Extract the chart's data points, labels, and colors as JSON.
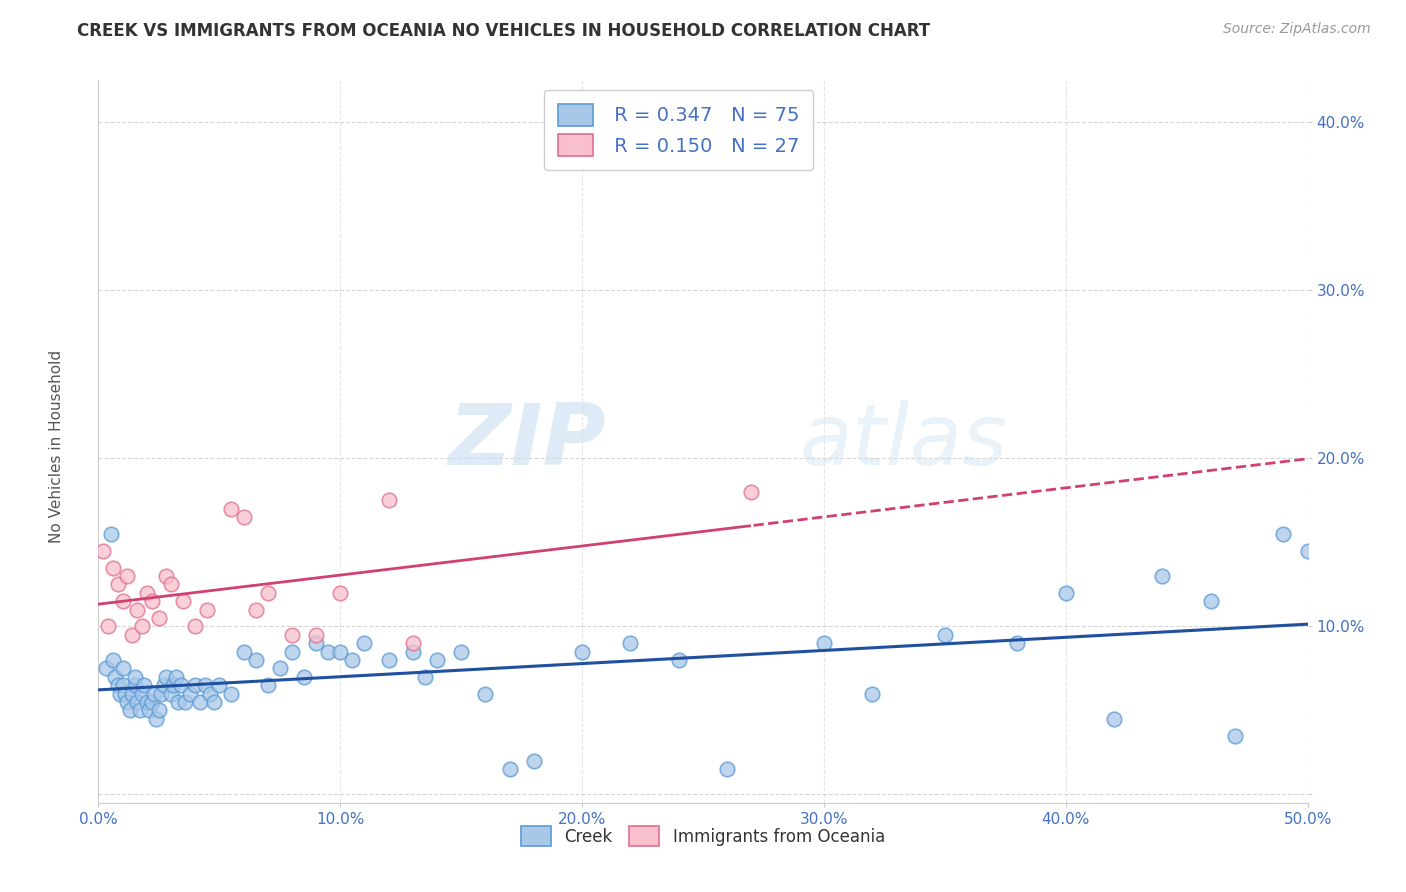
{
  "title": "CREEK VS IMMIGRANTS FROM OCEANIA NO VEHICLES IN HOUSEHOLD CORRELATION CHART",
  "source": "Source: ZipAtlas.com",
  "ylabel": "No Vehicles in Household",
  "xlim": [
    0.0,
    0.5
  ],
  "ylim": [
    -0.005,
    0.425
  ],
  "xticks": [
    0.0,
    0.1,
    0.2,
    0.3,
    0.4,
    0.5
  ],
  "yticks": [
    0.0,
    0.1,
    0.2,
    0.3,
    0.4
  ],
  "xticklabels": [
    "0.0%",
    "10.0%",
    "20.0%",
    "30.0%",
    "40.0%",
    "50.0%"
  ],
  "yticklabels": [
    "",
    "10.0%",
    "20.0%",
    "30.0%",
    "40.0%"
  ],
  "creek_color": "#a8c8e8",
  "creek_edge": "#5b9bd5",
  "oceania_color": "#f8c0cc",
  "oceania_edge": "#e07090",
  "trend_creek_color": "#2050a0",
  "trend_oceania_color": "#d04070",
  "R_creek": 0.347,
  "N_creek": 75,
  "R_oceania": 0.15,
  "N_oceania": 27,
  "creek_x": [
    0.003,
    0.005,
    0.006,
    0.007,
    0.008,
    0.009,
    0.01,
    0.01,
    0.011,
    0.012,
    0.013,
    0.014,
    0.015,
    0.015,
    0.016,
    0.017,
    0.018,
    0.019,
    0.02,
    0.021,
    0.022,
    0.023,
    0.024,
    0.025,
    0.026,
    0.027,
    0.028,
    0.03,
    0.031,
    0.032,
    0.033,
    0.034,
    0.036,
    0.038,
    0.04,
    0.042,
    0.044,
    0.046,
    0.048,
    0.05,
    0.055,
    0.06,
    0.065,
    0.07,
    0.075,
    0.08,
    0.085,
    0.09,
    0.095,
    0.1,
    0.105,
    0.11,
    0.12,
    0.13,
    0.135,
    0.14,
    0.15,
    0.16,
    0.17,
    0.18,
    0.2,
    0.22,
    0.24,
    0.26,
    0.3,
    0.32,
    0.35,
    0.38,
    0.4,
    0.42,
    0.44,
    0.46,
    0.47,
    0.49,
    0.5
  ],
  "creek_y": [
    0.075,
    0.155,
    0.08,
    0.07,
    0.065,
    0.06,
    0.065,
    0.075,
    0.06,
    0.055,
    0.05,
    0.06,
    0.065,
    0.07,
    0.055,
    0.05,
    0.06,
    0.065,
    0.055,
    0.05,
    0.055,
    0.06,
    0.045,
    0.05,
    0.06,
    0.065,
    0.07,
    0.06,
    0.065,
    0.07,
    0.055,
    0.065,
    0.055,
    0.06,
    0.065,
    0.055,
    0.065,
    0.06,
    0.055,
    0.065,
    0.06,
    0.085,
    0.08,
    0.065,
    0.075,
    0.085,
    0.07,
    0.09,
    0.085,
    0.085,
    0.08,
    0.09,
    0.08,
    0.085,
    0.07,
    0.08,
    0.085,
    0.06,
    0.015,
    0.02,
    0.085,
    0.09,
    0.08,
    0.015,
    0.09,
    0.06,
    0.095,
    0.09,
    0.12,
    0.045,
    0.13,
    0.115,
    0.035,
    0.155,
    0.145
  ],
  "oceania_x": [
    0.002,
    0.004,
    0.006,
    0.008,
    0.01,
    0.012,
    0.014,
    0.016,
    0.018,
    0.02,
    0.022,
    0.025,
    0.028,
    0.03,
    0.035,
    0.04,
    0.045,
    0.055,
    0.06,
    0.065,
    0.07,
    0.08,
    0.09,
    0.1,
    0.12,
    0.13,
    0.27
  ],
  "oceania_y": [
    0.145,
    0.1,
    0.135,
    0.125,
    0.115,
    0.13,
    0.095,
    0.11,
    0.1,
    0.12,
    0.115,
    0.105,
    0.13,
    0.125,
    0.115,
    0.1,
    0.11,
    0.17,
    0.165,
    0.11,
    0.12,
    0.095,
    0.095,
    0.12,
    0.175,
    0.09,
    0.18
  ],
  "watermark_zip": "ZIP",
  "watermark_atlas": "atlas",
  "background_color": "#ffffff",
  "grid_color": "#cccccc",
  "tick_label_color": "#4472c4"
}
